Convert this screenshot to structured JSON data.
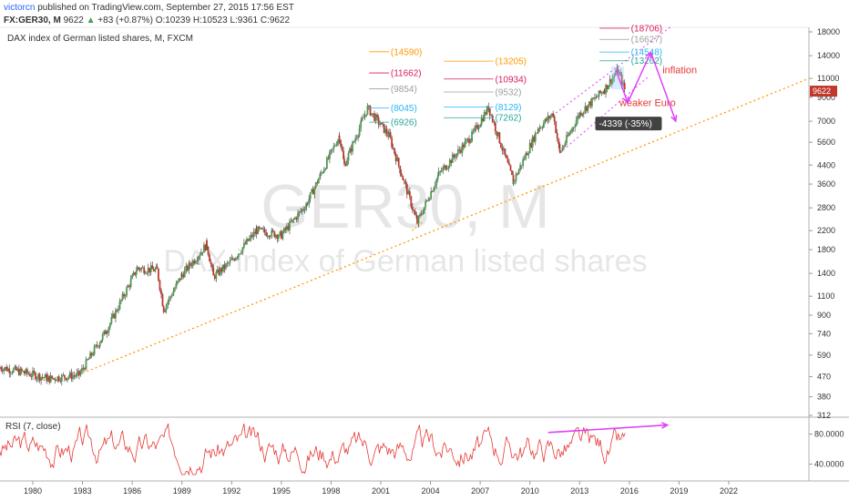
{
  "header": {
    "author": "victorcn",
    "published": "published on TradingView.com, September 27, 2015 17:56 EST",
    "symbol": "FX:GER30, M",
    "last": "9622",
    "change": "+83 (+0.87%)",
    "open": "O:10239",
    "high": "H:10523",
    "low": "L:9361",
    "close": "C:9622",
    "arrow_icon": "triangle-up-icon"
  },
  "chart_data": [
    {
      "type": "candlestick",
      "title": "DAX index of German listed shares, M, FXCM",
      "watermark_symbol": "GER30, M",
      "watermark_desc": "DAX index of German listed shares",
      "scale": "log",
      "ylim": [
        312,
        18700
      ],
      "y_ticks": [
        18000,
        14000,
        11000,
        9000,
        7000,
        5600,
        4400,
        3600,
        2800,
        2200,
        1800,
        1400,
        1100,
        900,
        740,
        590,
        470,
        380,
        312
      ],
      "x_ticks": [
        "1980",
        "1983",
        "1986",
        "1989",
        "1992",
        "1995",
        "1998",
        "2001",
        "2004",
        "2007",
        "2010",
        "2013",
        "2016",
        "2019",
        "2022"
      ],
      "last_price_label": "9622",
      "colors": {
        "up": "#4e9a4e",
        "down": "#c0392b",
        "trend": "#ff9800",
        "channel": "#e040fb",
        "arrow": "#e040fb",
        "annotation": "#e53935"
      },
      "key_points": [
        {
          "x": 1978.0,
          "y": 520
        },
        {
          "x": 1979.5,
          "y": 490
        },
        {
          "x": 1981.0,
          "y": 460
        },
        {
          "x": 1982.8,
          "y": 480
        },
        {
          "x": 1984.5,
          "y": 780
        },
        {
          "x": 1986.3,
          "y": 1480
        },
        {
          "x": 1987.5,
          "y": 1450
        },
        {
          "x": 1987.9,
          "y": 960
        },
        {
          "x": 1989.0,
          "y": 1380
        },
        {
          "x": 1990.5,
          "y": 1900
        },
        {
          "x": 1990.9,
          "y": 1350
        },
        {
          "x": 1992.0,
          "y": 1600
        },
        {
          "x": 1993.5,
          "y": 2200
        },
        {
          "x": 1995.0,
          "y": 2100
        },
        {
          "x": 1996.5,
          "y": 2900
        },
        {
          "x": 1998.5,
          "y": 6000
        },
        {
          "x": 1998.8,
          "y": 4400
        },
        {
          "x": 2000.2,
          "y": 8045
        },
        {
          "x": 2001.5,
          "y": 6000
        },
        {
          "x": 2003.2,
          "y": 2400
        },
        {
          "x": 2004.5,
          "y": 4000
        },
        {
          "x": 2006.5,
          "y": 6000
        },
        {
          "x": 2007.5,
          "y": 8100
        },
        {
          "x": 2009.0,
          "y": 3700
        },
        {
          "x": 2010.5,
          "y": 6500
        },
        {
          "x": 2011.4,
          "y": 7600
        },
        {
          "x": 2011.8,
          "y": 5000
        },
        {
          "x": 2013.0,
          "y": 7600
        },
        {
          "x": 2014.5,
          "y": 9800
        },
        {
          "x": 2015.3,
          "y": 12000
        },
        {
          "x": 2015.75,
          "y": 9622
        }
      ],
      "fib_levels": [
        {
          "value": 14590,
          "label": "(14590)",
          "color": "#ff9800"
        },
        {
          "value": 11662,
          "label": "(11662)",
          "color": "#d81b60"
        },
        {
          "value": 9854,
          "label": "(9854)",
          "color": "#9e9e9e"
        },
        {
          "value": 8045,
          "label": "(8045)",
          "color": "#29b6f6"
        },
        {
          "value": 6926,
          "label": "(6926)",
          "color": "#26a69a"
        },
        {
          "value": 13205,
          "label": "(13205)",
          "color": "#ff9800"
        },
        {
          "value": 10934,
          "label": "(10934)",
          "color": "#d81b60"
        },
        {
          "value": 9532,
          "label": "(9532)",
          "color": "#9e9e9e"
        },
        {
          "value": 8129,
          "label": "(8129)",
          "color": "#29b6f6"
        },
        {
          "value": 7262,
          "label": "(7262)",
          "color": "#26a69a"
        },
        {
          "value": 18706,
          "label": "(18706)",
          "color": "#d81b60"
        },
        {
          "value": 16627,
          "label": "(16627)",
          "color": "#9e9e9e"
        },
        {
          "value": 14548,
          "label": "(14548)",
          "color": "#29b6f6"
        },
        {
          "value": 13262,
          "label": "(13262)",
          "color": "#26a69a"
        }
      ],
      "annotations": [
        {
          "text": "inflation",
          "color": "#e53935"
        },
        {
          "text": "weaker Euro",
          "color": "#e53935"
        },
        {
          "text": "-4339 (-35%)",
          "color": "#ffffff"
        }
      ]
    },
    {
      "type": "line",
      "title": "RSI (7, close)",
      "ylim": [
        20,
        100
      ],
      "y_ticks": [
        "80.0000",
        "40.0000"
      ],
      "color": "#e53935"
    }
  ]
}
